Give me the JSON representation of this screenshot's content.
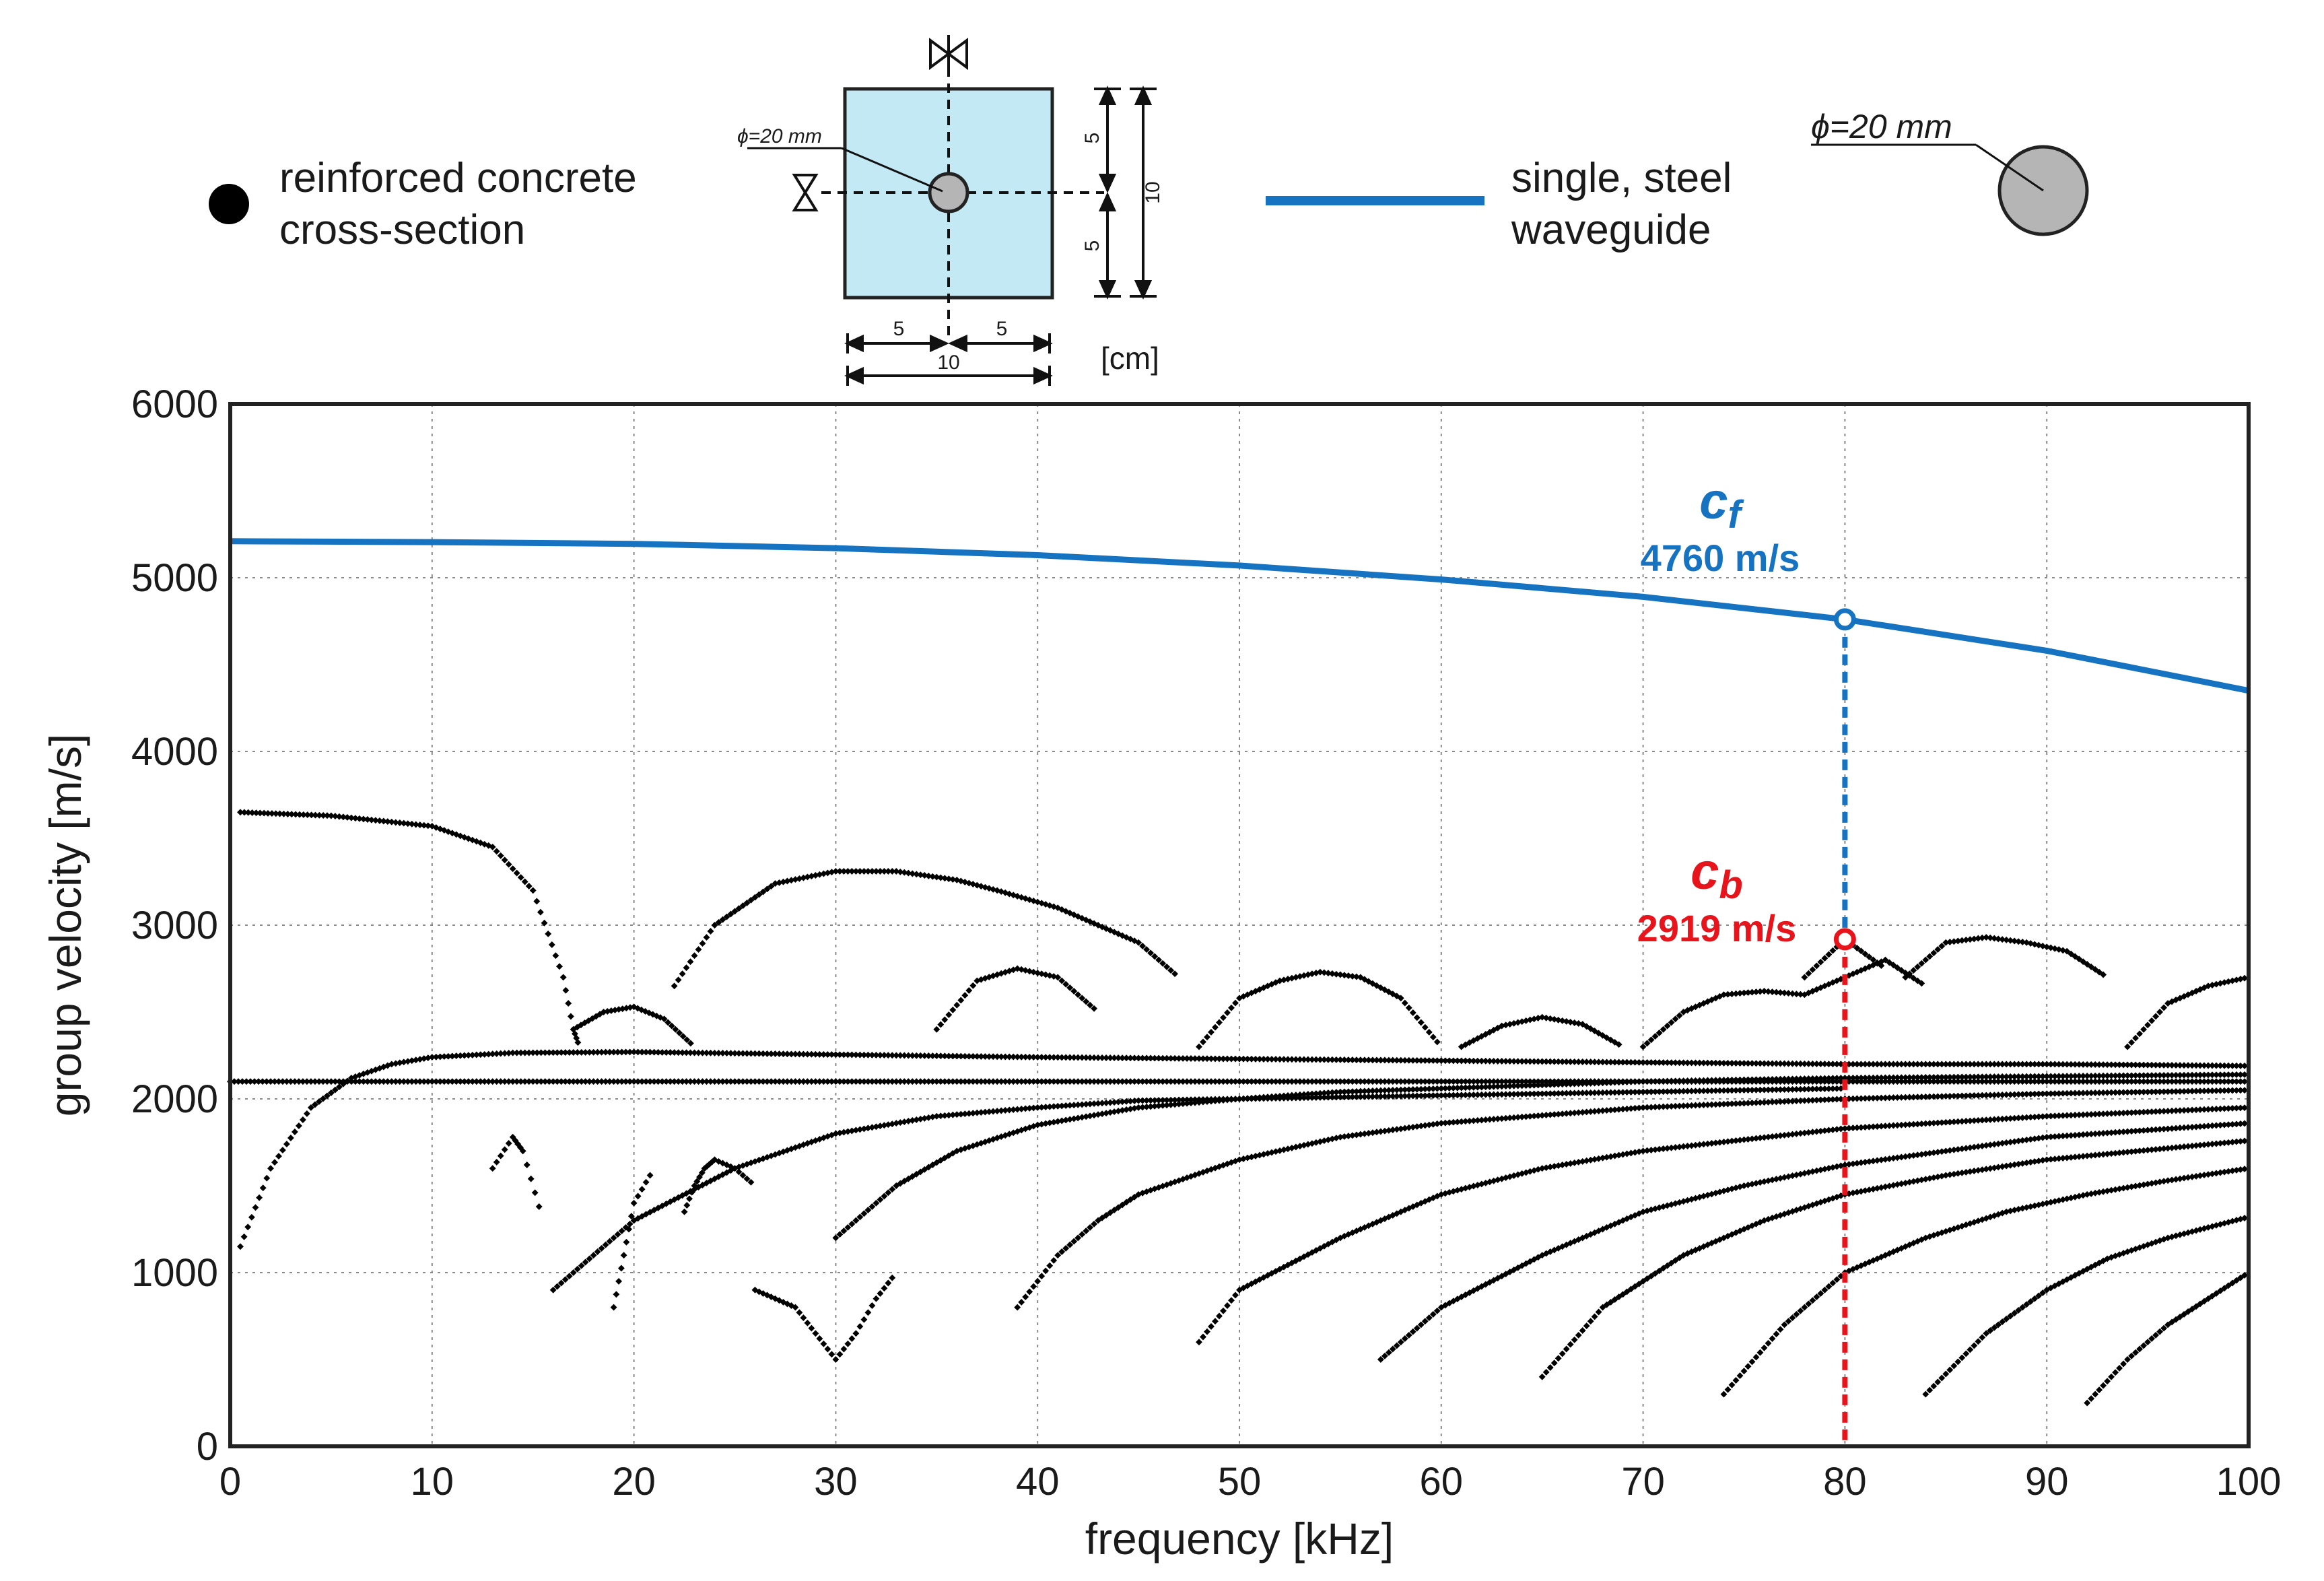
{
  "legend": {
    "concrete_label_line1": "reinforced concrete",
    "concrete_label_line2": "cross-section",
    "steel_label_line1": "single, steel",
    "steel_label_line2": "waveguide"
  },
  "cross_section": {
    "diameter_label": "ϕ=20 mm",
    "half_width": "5",
    "total_width": "10",
    "half_height": "5",
    "total_height": "10",
    "unit": "[cm]"
  },
  "steel_section": {
    "diameter_label": "ϕ=20 mm"
  },
  "colors": {
    "steel_curve": "#1673c1",
    "rc_marker": "#e8141c",
    "concrete_fill": "#c2e9f4",
    "bar_fill": "#b5b5b5",
    "rc_points": "#000000"
  },
  "chart_data": {
    "type": "scatter",
    "xlabel": "frequency [kHz]",
    "ylabel": "group velocity [m/s]",
    "xlim": [
      0,
      100
    ],
    "ylim": [
      0,
      6000
    ],
    "xticks": [
      "0",
      "10",
      "20",
      "30",
      "40",
      "50",
      "60",
      "70",
      "80",
      "90",
      "100"
    ],
    "yticks": [
      "0",
      "1000",
      "2000",
      "3000",
      "4000",
      "5000",
      "6000"
    ],
    "grid": true,
    "series": [
      {
        "name": "single, steel waveguide",
        "kind": "line",
        "x": [
          0,
          10,
          20,
          30,
          40,
          50,
          60,
          70,
          80,
          90,
          100
        ],
        "y": [
          5210,
          5205,
          5195,
          5170,
          5130,
          5070,
          4990,
          4890,
          4760,
          4580,
          4350
        ]
      },
      {
        "name": "reinforced concrete cross-section",
        "kind": "scatter",
        "branches": [
          {
            "x": [
              0.5,
              5,
              10,
              13,
              15,
              16.5,
              17,
              17.3
            ],
            "y": [
              3650,
              3630,
              3570,
              3450,
              3200,
              2700,
              2400,
              2300
            ]
          },
          {
            "x": [
              0.5,
              2,
              4,
              6,
              8,
              10,
              14,
              20,
              30,
              40,
              50,
              60,
              70,
              80,
              90,
              100
            ],
            "y": [
              1150,
              1600,
              1950,
              2120,
              2200,
              2240,
              2265,
              2270,
              2255,
              2240,
              2230,
              2220,
              2210,
              2200,
              2200,
              2190
            ]
          },
          {
            "x": [
              0,
              10,
              20,
              30,
              40,
              50,
              60,
              70,
              80,
              90,
              100
            ],
            "y": [
              2100,
              2100,
              2100,
              2100,
              2100,
              2100,
              2100,
              2100,
              2100,
              2100,
              2100
            ]
          },
          {
            "x": [
              22,
              24,
              27,
              30,
              33,
              36,
              38,
              41,
              45,
              47
            ],
            "y": [
              2650,
              3000,
              3240,
              3310,
              3310,
              3260,
              3200,
              3100,
              2900,
              2700
            ]
          },
          {
            "x": [
              17,
              18.5,
              20,
              21.5,
              23
            ],
            "y": [
              2400,
              2500,
              2530,
              2460,
              2300
            ]
          },
          {
            "x": [
              35,
              37,
              39,
              41,
              43
            ],
            "y": [
              2400,
              2680,
              2750,
              2700,
              2500
            ]
          },
          {
            "x": [
              48,
              50,
              52,
              54,
              56,
              58,
              60
            ],
            "y": [
              2300,
              2580,
              2680,
              2730,
              2700,
              2580,
              2300
            ]
          },
          {
            "x": [
              61,
              63,
              65,
              67,
              69
            ],
            "y": [
              2300,
              2420,
              2470,
              2430,
              2300
            ]
          },
          {
            "x": [
              16,
              20,
              25,
              30,
              35,
              40,
              45,
              50,
              55,
              60,
              65,
              70,
              75,
              80
            ],
            "y": [
              900,
              1300,
              1600,
              1800,
              1900,
              1950,
              1990,
              2000,
              2010,
              2020,
              2030,
              2040,
              2050,
              2060
            ]
          },
          {
            "x": [
              26,
              28,
              29,
              30,
              31,
              32,
              33
            ],
            "y": [
              900,
              800,
              650,
              500,
              650,
              850,
              1000
            ]
          },
          {
            "x": [
              30,
              33,
              36,
              40,
              45,
              50,
              55,
              60,
              65,
              70,
              80,
              90,
              100
            ],
            "y": [
              1200,
              1500,
              1700,
              1850,
              1950,
              2000,
              2040,
              2060,
              2080,
              2100,
              2120,
              2130,
              2140
            ]
          },
          {
            "x": [
              39,
              41,
              43,
              45,
              50,
              55,
              60,
              70,
              80,
              90,
              100
            ],
            "y": [
              800,
              1100,
              1300,
              1450,
              1650,
              1780,
              1860,
              1950,
              2000,
              2030,
              2050
            ]
          },
          {
            "x": [
              48,
              50,
              55,
              60,
              65,
              70,
              80,
              90,
              100
            ],
            "y": [
              600,
              900,
              1200,
              1450,
              1600,
              1700,
              1830,
              1900,
              1950
            ]
          },
          {
            "x": [
              57,
              60,
              65,
              70,
              75,
              80,
              90,
              100
            ],
            "y": [
              500,
              800,
              1100,
              1350,
              1500,
              1620,
              1780,
              1860
            ]
          },
          {
            "x": [
              65,
              68,
              72,
              76,
              80,
              85,
              90,
              100
            ],
            "y": [
              400,
              800,
              1100,
              1300,
              1450,
              1560,
              1650,
              1760
            ]
          },
          {
            "x": [
              74,
              77,
              80,
              84,
              88,
              92,
              96,
              100
            ],
            "y": [
              300,
              700,
              1000,
              1200,
              1350,
              1450,
              1530,
              1600
            ]
          },
          {
            "x": [
              84,
              87,
              90,
              93,
              96,
              100
            ],
            "y": [
              300,
              650,
              900,
              1080,
              1200,
              1320
            ]
          },
          {
            "x": [
              92,
              94,
              96,
              98,
              100
            ],
            "y": [
              250,
              500,
              700,
              850,
              1000
            ]
          },
          {
            "x": [
              70,
              72,
              74,
              76,
              78,
              80,
              82,
              84
            ],
            "y": [
              2300,
              2500,
              2600,
              2620,
              2600,
              2700,
              2800,
              2650
            ]
          },
          {
            "x": [
              78,
              80,
              82
            ],
            "y": [
              2700,
              2919,
              2750
            ]
          },
          {
            "x": [
              83,
              85,
              87,
              89,
              91,
              93
            ],
            "y": [
              2700,
              2900,
              2930,
              2900,
              2850,
              2700
            ]
          },
          {
            "x": [
              94,
              96,
              98,
              100
            ],
            "y": [
              2300,
              2550,
              2650,
              2700
            ]
          },
          {
            "x": [
              22.5,
              23,
              23.5,
              24,
              25,
              26
            ],
            "y": [
              1350,
              1500,
              1600,
              1650,
              1600,
              1500
            ]
          },
          {
            "x": [
              19,
              19.5,
              20,
              21
            ],
            "y": [
              800,
              1100,
              1400,
              1600
            ]
          },
          {
            "x": [
              13,
              14,
              14.5,
              15.5
            ],
            "y": [
              1600,
              1780,
              1700,
              1300
            ]
          }
        ]
      }
    ],
    "annotations": [
      {
        "symbol": "c",
        "subscript": "f",
        "value_label": "4760 m/s",
        "x": 80,
        "y": 4760,
        "color": "#1673c1"
      },
      {
        "symbol": "c",
        "subscript": "b",
        "value_label": "2919 m/s",
        "x": 80,
        "y": 2919,
        "color": "#e8141c"
      }
    ]
  }
}
